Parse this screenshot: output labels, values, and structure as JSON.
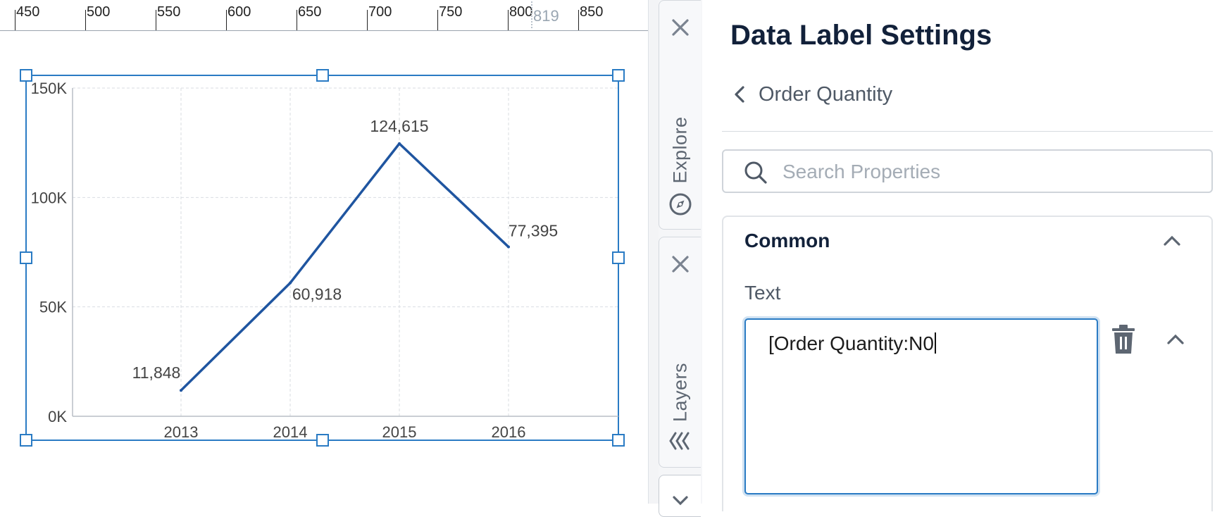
{
  "ruler": {
    "labels": [
      "450",
      "500",
      "550",
      "600",
      "650",
      "700",
      "750",
      "800",
      "850"
    ],
    "marker_label": "819"
  },
  "chart_data": {
    "type": "line",
    "categories": [
      "2013",
      "2014",
      "2015",
      "2016"
    ],
    "values": [
      11848,
      60918,
      124615,
      77395
    ],
    "data_labels": [
      "11,848",
      "60,918",
      "124,615",
      "77,395"
    ],
    "y_ticks": [
      "0K",
      "50K",
      "100K",
      "150K"
    ],
    "ylim": [
      0,
      150000
    ],
    "grid": true,
    "line_color": "#1f55a0"
  },
  "tabs": {
    "explore": {
      "label": "Explore",
      "icon": "compass-icon",
      "close": "close-icon"
    },
    "layers": {
      "label": "Layers",
      "icon": "layers-icon",
      "close": "close-icon"
    }
  },
  "panel": {
    "title": "Data Label Settings",
    "back_label": "Order Quantity",
    "search_placeholder": "Search Properties",
    "section_title": "Common",
    "text_label": "Text",
    "text_value": "[Order Quantity:N0"
  },
  "colors": {
    "accent": "#2a7bc4",
    "title": "#12213a",
    "icon_gray": "#5d6672"
  }
}
